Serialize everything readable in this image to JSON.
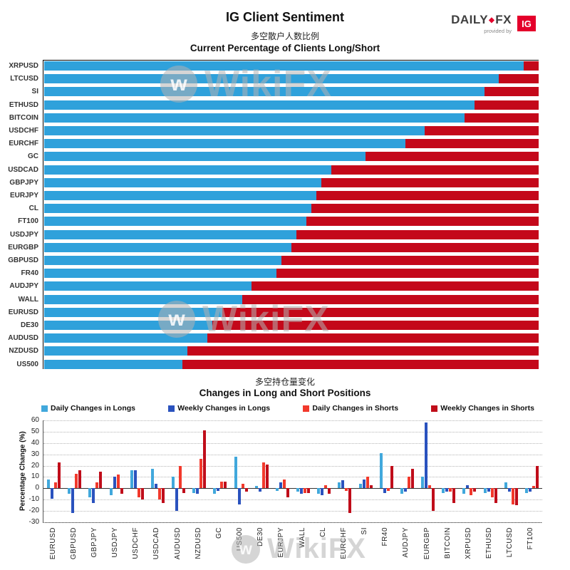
{
  "header": {
    "title": "IG Client Sentiment",
    "subtitle_cn": "多空散户人数比例",
    "subtitle_en": "Current Percentage of Clients Long/Short",
    "logo": {
      "daily": "DAILY",
      "fx": "FX",
      "diamond": "diamond-icon",
      "provided_by": "provided by",
      "ig": "IG",
      "ig_red": "#e4002b"
    }
  },
  "watermark": {
    "text": "WikiFX"
  },
  "chart_data": [
    {
      "type": "bar",
      "name": "client-sentiment",
      "orientation": "horizontal-stacked",
      "title": "Current Percentage of Clients Long/Short",
      "subtitle_cn": "多空散户人数比例",
      "xlim": [
        0,
        100
      ],
      "categories": [
        "XRPUSD",
        "LTCUSD",
        "SI",
        "ETHUSD",
        "BITCOIN",
        "USDCHF",
        "EURCHF",
        "GC",
        "USDCAD",
        "GBPJPY",
        "EURJPY",
        "CL",
        "FT100",
        "USDJPY",
        "EURGBP",
        "GBPUSD",
        "FR40",
        "AUDJPY",
        "WALL",
        "EURUSD",
        "DE30",
        "AUDUSD",
        "NZDUSD",
        "US500"
      ],
      "series": [
        {
          "name": "Percent Long",
          "color": "#2fa1db",
          "values": [
            97,
            92,
            89,
            87,
            85,
            77,
            73,
            65,
            58,
            56,
            55,
            54,
            53,
            51,
            50,
            48,
            47,
            42,
            40,
            36,
            34,
            33,
            29,
            28
          ]
        },
        {
          "name": "Percent Short",
          "color": "#c4081a",
          "values": [
            3,
            8,
            11,
            13,
            15,
            23,
            27,
            35,
            42,
            44,
            45,
            46,
            47,
            49,
            50,
            52,
            53,
            58,
            60,
            64,
            66,
            67,
            71,
            72
          ]
        }
      ]
    },
    {
      "type": "bar",
      "name": "position-changes",
      "title": "Changes in Long and Short Positions",
      "subtitle_cn": "多空持仓量变化",
      "ylabel": "Percentage Change (%)",
      "ylim": [
        -30,
        60
      ],
      "yticks": [
        60,
        50,
        40,
        30,
        20,
        10,
        0,
        -10,
        -20,
        -30
      ],
      "grid": "dotted",
      "legend_position": "top",
      "categories": [
        "EURUSD",
        "GBPUSD",
        "GBPJPY",
        "USDJPY",
        "USDCHF",
        "USDCAD",
        "AUDUSD",
        "NZDUSD",
        "GC",
        "US500",
        "DE30",
        "EURJPY",
        "WALL",
        "CL",
        "EURCHF",
        "SI",
        "FR40",
        "AUDJPY",
        "EURGBP",
        "BITCOIN",
        "XRPUSD",
        "ETHUSD",
        "LTCUSD",
        "FT100"
      ],
      "series": [
        {
          "name": "Daily Changes in Longs",
          "color": "#41a8dc",
          "values": [
            8,
            -5,
            -8,
            -6,
            16,
            17,
            10,
            -4,
            -5,
            28,
            2,
            -2,
            -3,
            -5,
            5,
            4,
            31,
            -5,
            10,
            -4,
            -5,
            -4,
            5,
            -4
          ]
        },
        {
          "name": "Weekly Changes in Longs",
          "color": "#2a52be",
          "values": [
            -9,
            -22,
            -13,
            10,
            16,
            4,
            -20,
            -5,
            -2,
            -14,
            -3,
            5,
            -5,
            -6,
            7,
            8,
            -4,
            -3,
            58,
            -3,
            3,
            -3,
            -3,
            -3
          ]
        },
        {
          "name": "Daily Changes in Shorts",
          "color": "#f2392c",
          "values": [
            5,
            13,
            5,
            12,
            -8,
            -10,
            20,
            26,
            6,
            4,
            23,
            8,
            -4,
            3,
            -2,
            10,
            -2,
            10,
            3,
            -3,
            -6,
            -8,
            -14,
            2
          ]
        },
        {
          "name": "Weekly Changes in Shorts",
          "color": "#c00d1a",
          "values": [
            23,
            16,
            15,
            -5,
            -10,
            -13,
            -4,
            51,
            6,
            -3,
            21,
            -8,
            -4,
            -5,
            -22,
            3,
            20,
            17,
            -20,
            -13,
            -3,
            -13,
            -15,
            20
          ]
        }
      ]
    }
  ]
}
